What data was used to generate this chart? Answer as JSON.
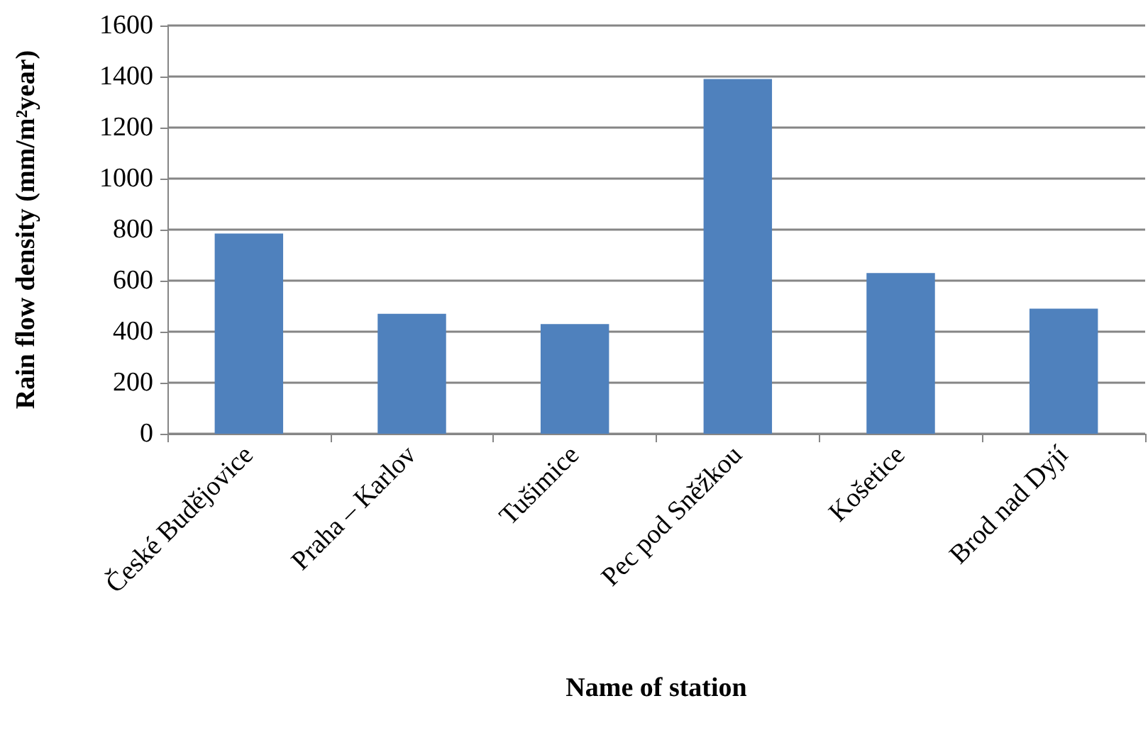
{
  "chart_data": {
    "type": "bar",
    "xlabel": "Name of station",
    "ylabel": "Rain flow density (mm/m²year)",
    "categories": [
      "České Budějovice",
      "Praha – Karlov",
      "Tušimice",
      "Pec pod Sněžkou",
      "Košetice",
      "Brod nad Dyjí"
    ],
    "values": [
      785,
      470,
      430,
      1390,
      630,
      490
    ],
    "color": "#4f81bd",
    "ylim": [
      0,
      1600
    ],
    "yticks": [
      0,
      200,
      400,
      600,
      800,
      1000,
      1200,
      1400,
      1600
    ],
    "grid": "y"
  }
}
